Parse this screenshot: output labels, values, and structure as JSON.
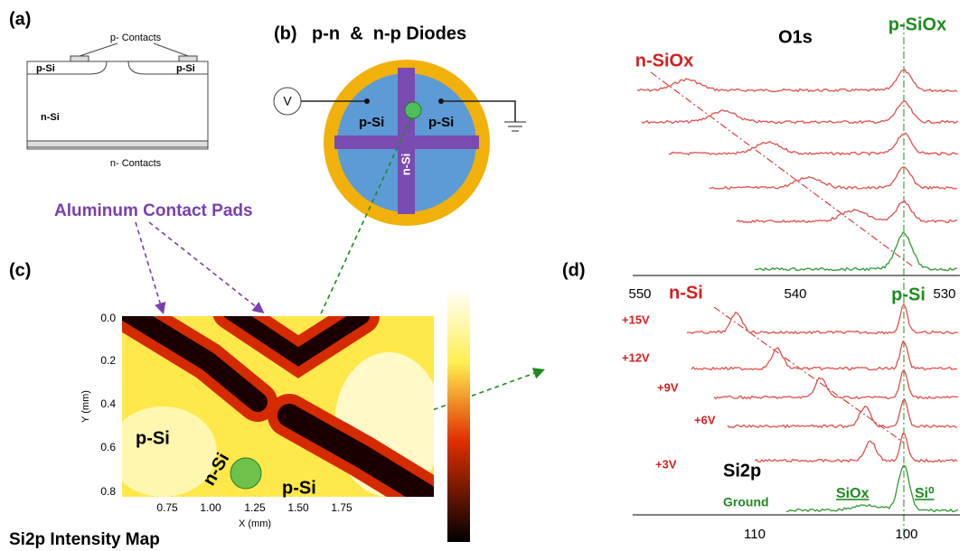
{
  "panel_a": {
    "label": "(a)",
    "p_contacts": "p- Contacts",
    "p_si_left": "p-Si",
    "p_si_right": "p-Si",
    "n_si": "n-Si",
    "n_contacts": "n- Contacts"
  },
  "panel_b": {
    "label": "(b)",
    "title": "p-n  &  n-p Diodes",
    "voltage": "V",
    "p_si_left": "p-Si",
    "p_si_right": "p-Si",
    "n_si": "n-Si"
  },
  "annotation": "Aluminum Contact Pads",
  "panel_c": {
    "label": "(c)",
    "y_label": "Y (mm)",
    "x_label": "X (mm)",
    "y_ticks": [
      "0.0",
      "0.2",
      "0.4",
      "0.6",
      "0.8"
    ],
    "x_ticks": [
      "0.75",
      "1.00",
      "1.25",
      "1.50",
      "1.75"
    ],
    "p_si_left": "p-Si",
    "n_si": "n-Si",
    "p_si_right": "p-Si",
    "caption": "Si2p Intensity Map"
  },
  "panel_d": {
    "label": "(d)",
    "o1s": {
      "title": "O1s",
      "n_label": "n-SiOx",
      "p_label": "p-SiOx",
      "x_ticks": [
        "550",
        "540",
        "530"
      ]
    },
    "si2p": {
      "title": "Si2p",
      "n_label": "n-Si",
      "p_label": "p-Si",
      "biases": [
        "+15V",
        "+12V",
        "+9V",
        "+6V",
        "+3V"
      ],
      "ground": "Ground",
      "siox": "SiOx",
      "si0": "Si⁰",
      "x_ticks": [
        "110",
        "100"
      ]
    }
  }
}
